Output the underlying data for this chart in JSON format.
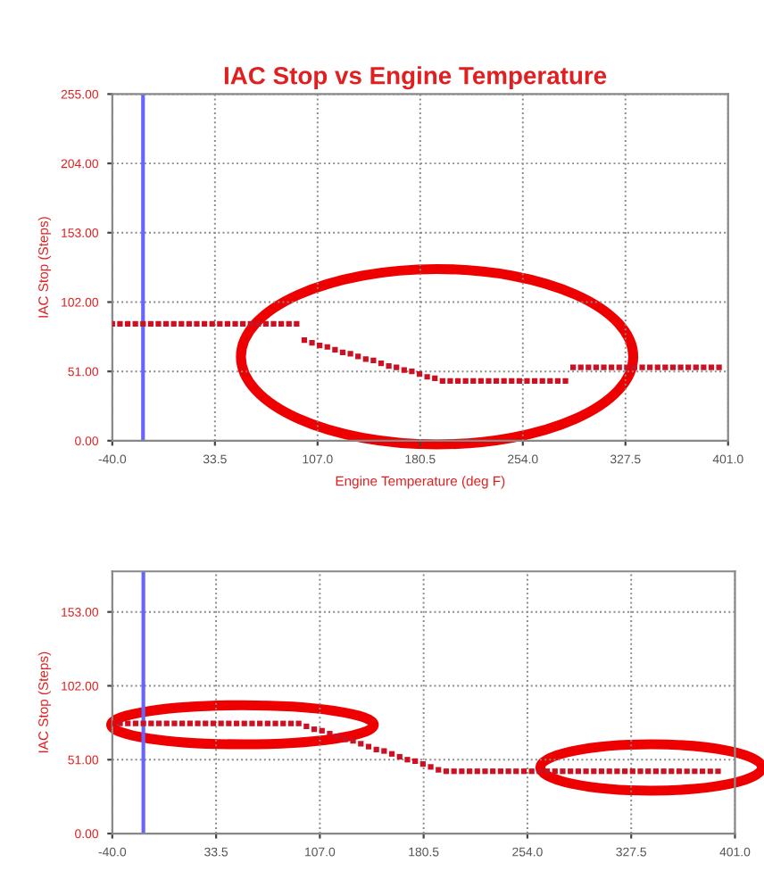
{
  "chart_data": [
    {
      "type": "scatter",
      "title": "IAC Stop vs Engine Temperature",
      "xlabel": "Engine Temperature (deg F)",
      "ylabel": "IAC Stop (Steps)",
      "marker": "square",
      "grid": true,
      "xlim": [
        -40,
        401
      ],
      "xticks": [
        {
          "value": -40,
          "label": "-40.0"
        },
        {
          "value": 33.5,
          "label": "33.5"
        },
        {
          "value": 107,
          "label": "107.0"
        },
        {
          "value": 180.5,
          "label": "180.5"
        },
        {
          "value": 254,
          "label": "254.0"
        },
        {
          "value": 327.5,
          "label": "327.5"
        },
        {
          "value": 401,
          "label": "401.0"
        }
      ],
      "ylim": [
        0,
        255
      ],
      "yticks": [
        {
          "value": 0,
          "label": "0.00"
        },
        {
          "value": 51,
          "label": "51.00"
        },
        {
          "value": 102,
          "label": "102.00"
        },
        {
          "value": 153,
          "label": "153.00"
        },
        {
          "value": 204,
          "label": "204.00"
        },
        {
          "value": 255,
          "label": "255.00"
        }
      ],
      "ref_lines": [
        {
          "axis": "x",
          "value": -18,
          "color": "#6666ff"
        }
      ],
      "series": [
        {
          "color": "#cc1122",
          "x": [
            -40,
            -34.5,
            -29,
            -23.5,
            -18,
            -12.5,
            -7,
            -1.5,
            4,
            9.5,
            15,
            20.5,
            26,
            31.5,
            37,
            42.5,
            48,
            53.5,
            59,
            64.5,
            70,
            75.5,
            81,
            86.5,
            92,
            97.5,
            103,
            108.5,
            114,
            119.5,
            125,
            130.5,
            136,
            141.5,
            147,
            152.5,
            158,
            163.5,
            169,
            174.5,
            180,
            185.5,
            191,
            196.5,
            202,
            207.5,
            213,
            218.5,
            224,
            229.5,
            235,
            240.5,
            246,
            251.5,
            257,
            262.5,
            268,
            273.5,
            279,
            284.5,
            290,
            295.5,
            301,
            306.5,
            312,
            317.5,
            323,
            328.5,
            334,
            339.5,
            345,
            350.5,
            356,
            361.5,
            367,
            372.5,
            378,
            383.5,
            389,
            394.5
          ],
          "values": [
            86,
            86,
            86,
            86,
            86,
            86,
            86,
            86,
            86,
            86,
            86,
            86,
            86,
            86,
            86,
            86,
            86,
            86,
            86,
            86,
            86,
            86,
            86,
            86,
            86,
            74,
            72,
            70,
            69,
            67,
            65,
            64,
            62,
            60,
            59,
            57,
            55,
            54,
            52,
            51,
            49,
            47,
            46,
            44,
            44,
            44,
            44,
            44,
            44,
            44,
            44,
            44,
            44,
            44,
            44,
            44,
            44,
            44,
            44,
            44,
            54,
            54,
            54,
            54,
            54,
            54,
            54,
            54,
            54,
            54,
            54,
            54,
            54,
            54,
            54,
            54,
            54,
            54,
            54,
            54
          ]
        }
      ]
    },
    {
      "type": "scatter",
      "ylabel": "IAC Stop (Steps)",
      "marker": "square",
      "grid": true,
      "xlim": [
        -40,
        401
      ],
      "xticks": [
        {
          "value": -40,
          "label": "-40.0"
        },
        {
          "value": 33.5,
          "label": "33.5"
        },
        {
          "value": 107,
          "label": "107.0"
        },
        {
          "value": 180.5,
          "label": "180.5"
        },
        {
          "value": 254,
          "label": "254.0"
        },
        {
          "value": 327.5,
          "label": "327.5"
        },
        {
          "value": 401,
          "label": "401.0"
        }
      ],
      "ylim": [
        0,
        181
      ],
      "yticks": [
        {
          "value": 0,
          "label": "0.00"
        },
        {
          "value": 51,
          "label": "51.00"
        },
        {
          "value": 102,
          "label": "102.00"
        },
        {
          "value": 153,
          "label": "153.00"
        }
      ],
      "ref_lines": [
        {
          "axis": "x",
          "value": -18,
          "color": "#6666ff"
        }
      ],
      "series": [
        {
          "color": "#cc1122",
          "x": [
            -40,
            -34.5,
            -29,
            -23.5,
            -18,
            -12.5,
            -7,
            -1.5,
            4,
            9.5,
            15,
            20.5,
            26,
            31.5,
            37,
            42.5,
            48,
            53.5,
            59,
            64.5,
            70,
            75.5,
            81,
            86.5,
            92,
            97.5,
            103,
            108.5,
            114,
            119.5,
            125,
            130.5,
            136,
            141.5,
            147,
            152.5,
            158,
            163.5,
            169,
            174.5,
            180,
            185.5,
            191,
            196.5,
            202,
            207.5,
            213,
            218.5,
            224,
            229.5,
            235,
            240.5,
            246,
            251.5,
            257,
            262.5,
            268,
            273.5,
            279,
            284.5,
            290,
            295.5,
            301,
            306.5,
            312,
            317.5,
            323,
            328.5,
            334,
            339.5,
            345,
            350.5,
            356,
            361.5,
            367,
            372.5,
            378,
            383.5,
            389
          ],
          "values": [
            76,
            76,
            76,
            76,
            76,
            76,
            76,
            76,
            76,
            76,
            76,
            76,
            76,
            76,
            76,
            76,
            76,
            76,
            76,
            76,
            76,
            76,
            76,
            76,
            76,
            74,
            72,
            71,
            69,
            67,
            65,
            64,
            62,
            60,
            58,
            57,
            55,
            53,
            51,
            50,
            48,
            46,
            44,
            43,
            43,
            43,
            43,
            43,
            43,
            43,
            43,
            43,
            43,
            43,
            43,
            43,
            43,
            43,
            43,
            43,
            43,
            43,
            43,
            43,
            43,
            43,
            43,
            43,
            43,
            43,
            43,
            43,
            43,
            43,
            43,
            43,
            43,
            43,
            43
          ]
        }
      ]
    }
  ]
}
